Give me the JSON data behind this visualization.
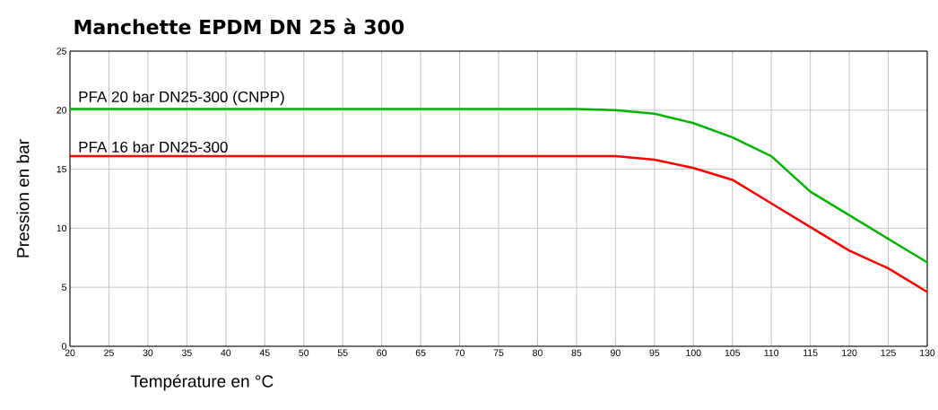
{
  "chart_data": {
    "type": "line",
    "title": "Manchette EPDM DN 25 à 300",
    "xlabel": "Température en °C",
    "ylabel": "Pression en bar",
    "x": [
      20,
      85,
      90,
      95,
      100,
      105,
      110,
      115,
      120,
      125,
      130
    ],
    "series": [
      {
        "name": "PFA 20 bar DN25-300 (CNPP)",
        "color": "#00b400",
        "values": [
          20.1,
          20.1,
          20.0,
          19.7,
          18.9,
          17.7,
          16.1,
          13.1,
          11.1,
          9.1,
          7.1
        ]
      },
      {
        "name": "PFA 16 bar DN25-300",
        "color": "#ff0000",
        "values": [
          16.1,
          16.1,
          16.1,
          15.8,
          15.1,
          14.1,
          12.1,
          10.1,
          8.1,
          6.6,
          4.6
        ]
      }
    ],
    "xlim": [
      20,
      130
    ],
    "xticks": [
      20,
      25,
      30,
      35,
      40,
      45,
      50,
      55,
      60,
      65,
      70,
      75,
      80,
      85,
      90,
      95,
      100,
      105,
      110,
      115,
      120,
      125,
      130
    ],
    "ylim": [
      0,
      25
    ],
    "yticks": [
      0,
      5,
      10,
      15,
      20,
      25
    ],
    "grid": true,
    "marker": "none",
    "line_style": "solid"
  }
}
